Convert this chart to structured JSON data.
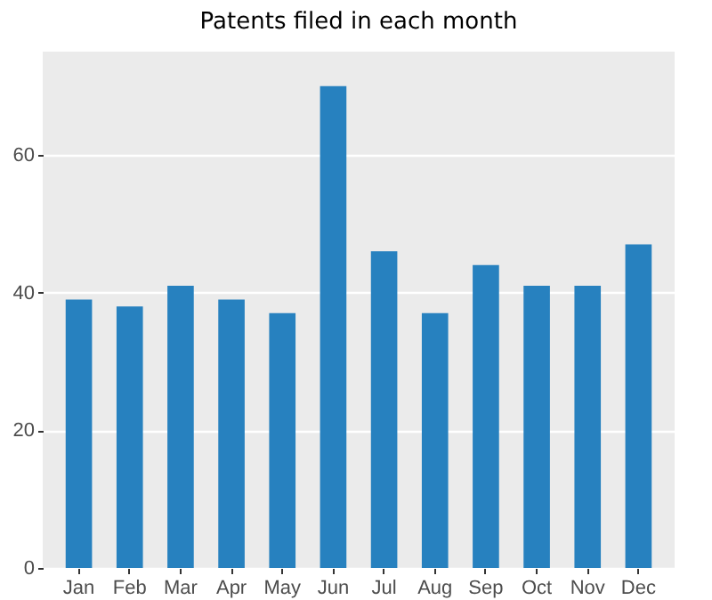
{
  "chart_data": {
    "type": "bar",
    "title": "Patents filed in each month",
    "categories": [
      "Jan",
      "Feb",
      "Mar",
      "Apr",
      "May",
      "Jun",
      "Jul",
      "Aug",
      "Sep",
      "Oct",
      "Nov",
      "Dec"
    ],
    "values": [
      39,
      38,
      41,
      39,
      37,
      70,
      46,
      37,
      44,
      41,
      41,
      47
    ],
    "color": "#2781bf",
    "ylim": [
      0,
      75
    ],
    "yticks": [
      0,
      20,
      40,
      60
    ],
    "grid": "y"
  }
}
